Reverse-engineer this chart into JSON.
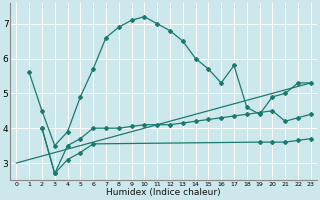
{
  "xlabel": "Humidex (Indice chaleur)",
  "bg_color": "#cce8ec",
  "grid_color": "#ffffff",
  "line_color": "#1a7a6e",
  "xlim": [
    -0.5,
    23.5
  ],
  "ylim": [
    2.5,
    7.6
  ],
  "yticks": [
    3,
    4,
    5,
    6,
    7
  ],
  "xticks": [
    0,
    1,
    2,
    3,
    4,
    5,
    6,
    7,
    8,
    9,
    10,
    11,
    12,
    13,
    14,
    15,
    16,
    17,
    18,
    19,
    20,
    21,
    22,
    23
  ],
  "line1_x": [
    1,
    2,
    3,
    4,
    5,
    6,
    7,
    8,
    9,
    10,
    11,
    12,
    13,
    14,
    15,
    16,
    17,
    18,
    19,
    20,
    21,
    22,
    23
  ],
  "line1_y": [
    5.6,
    4.5,
    3.5,
    3.9,
    4.9,
    5.7,
    6.6,
    6.9,
    7.1,
    7.2,
    7.0,
    6.8,
    6.5,
    6.0,
    5.7,
    5.3,
    5.8,
    4.6,
    4.4,
    4.9,
    5.0,
    5.3,
    5.3
  ],
  "line2_x": [
    2,
    3,
    4,
    5,
    6,
    7,
    8,
    9,
    10,
    11,
    12,
    13,
    14,
    15,
    16,
    17,
    18,
    19,
    20,
    21,
    22,
    23
  ],
  "line2_y": [
    4.0,
    2.7,
    3.5,
    3.7,
    4.0,
    4.0,
    4.0,
    4.05,
    4.1,
    4.1,
    4.1,
    4.15,
    4.2,
    4.25,
    4.3,
    4.35,
    4.4,
    4.45,
    4.5,
    4.2,
    4.3,
    4.4
  ],
  "line3_x": [
    2,
    3,
    4,
    5,
    6,
    19,
    20,
    21,
    22,
    23
  ],
  "line3_y": [
    4.0,
    2.7,
    3.1,
    3.3,
    3.55,
    3.6,
    3.6,
    3.6,
    3.65,
    3.7
  ],
  "line4_x": [
    0,
    23
  ],
  "line4_y": [
    3.0,
    5.3
  ]
}
